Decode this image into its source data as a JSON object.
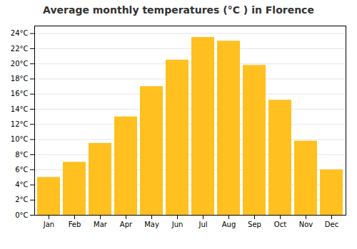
{
  "chart_data": {
    "type": "bar",
    "title": "Average monthly temperatures (°C ) in Florence",
    "categories": [
      "Jan",
      "Feb",
      "Mar",
      "Apr",
      "May",
      "Jun",
      "Jul",
      "Aug",
      "Sep",
      "Oct",
      "Nov",
      "Dec"
    ],
    "values": [
      5.0,
      7.0,
      9.5,
      13.0,
      17.0,
      20.5,
      23.5,
      23.0,
      19.8,
      15.2,
      9.8,
      6.0
    ],
    "color": "#FFC020",
    "ylim": [
      0,
      25
    ],
    "yticks": [
      {
        "value": 0,
        "label": "0°C"
      },
      {
        "value": 2,
        "label": "2°C"
      },
      {
        "value": 4,
        "label": "4°C"
      },
      {
        "value": 6,
        "label": "6°C"
      },
      {
        "value": 8,
        "label": "8°C"
      },
      {
        "value": 10,
        "label": "10°C"
      },
      {
        "value": 12,
        "label": "12°C"
      },
      {
        "value": 14,
        "label": "14°C"
      },
      {
        "value": 16,
        "label": "16°C"
      },
      {
        "value": 18,
        "label": "18°C"
      },
      {
        "value": 20,
        "label": "20°C"
      },
      {
        "value": 22,
        "label": "22°C"
      },
      {
        "value": 24,
        "label": "24°C"
      }
    ],
    "grid": true
  }
}
